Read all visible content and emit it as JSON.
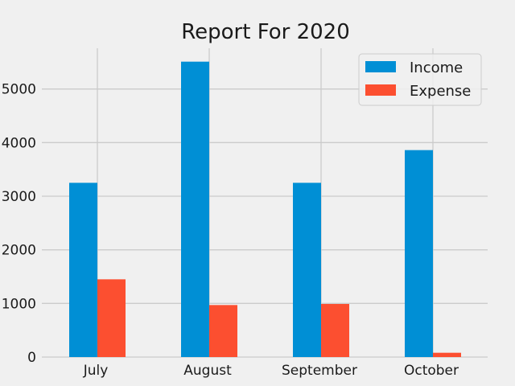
{
  "chart_data": {
    "type": "bar",
    "title": "Report For 2020",
    "xlabel": "",
    "ylabel": "",
    "categories": [
      "July",
      "August",
      "September",
      "October"
    ],
    "series": [
      {
        "name": "Income",
        "values": [
          3250,
          5510,
          3250,
          3860
        ],
        "color": "#008fd5"
      },
      {
        "name": "Expense",
        "values": [
          1450,
          970,
          990,
          80
        ],
        "color": "#fc4f30"
      }
    ],
    "ylim": [
      0,
      5760
    ],
    "yticks": [
      0,
      1000,
      2000,
      3000,
      4000,
      5000
    ],
    "ytick_labels": [
      "0",
      "1000",
      "2000",
      "3000",
      "4000",
      "5000"
    ],
    "grid": true,
    "legend_position": "top-right",
    "style": {
      "background": "#f0f0f0",
      "grid_color": "#cbcbcb"
    }
  }
}
